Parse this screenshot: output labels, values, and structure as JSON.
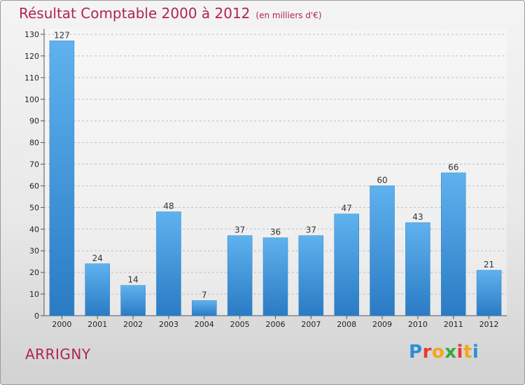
{
  "chart_data": {
    "type": "bar",
    "title": "Résultat Comptable 2000 à 2012",
    "subtitle": "(en milliers d'€)",
    "categories": [
      "2000",
      "2001",
      "2002",
      "2003",
      "2004",
      "2005",
      "2006",
      "2007",
      "2008",
      "2009",
      "2010",
      "2011",
      "2012"
    ],
    "values": [
      127,
      24,
      14,
      48,
      7,
      37,
      36,
      37,
      47,
      60,
      43,
      66,
      21
    ],
    "ylim": [
      0,
      130
    ],
    "yticks": [
      0,
      10,
      20,
      30,
      40,
      50,
      60,
      70,
      80,
      90,
      100,
      110,
      120,
      130
    ],
    "grid": true,
    "bar_color": "#3d94dc",
    "xlabel": "",
    "ylabel": ""
  },
  "footer": {
    "town": "ARRIGNY",
    "logo_letters": [
      "P",
      "r",
      "o",
      "x",
      "i",
      "t",
      "i"
    ],
    "logo_colors": [
      "#2a8fd6",
      "#e63b2e",
      "#f2a71b",
      "#3aa83a",
      "#e63b2e",
      "#f2a71b",
      "#2a8fd6"
    ]
  }
}
